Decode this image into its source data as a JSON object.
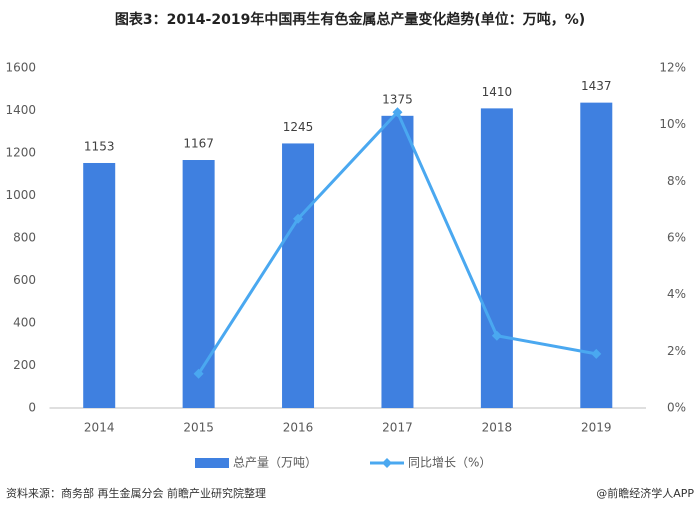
{
  "chart_data": {
    "type": "bar",
    "title": "图表3：2014-2019年中国再生有色金属总产量变化趋势(单位：万吨，%)",
    "categories": [
      "2014",
      "2015",
      "2016",
      "2017",
      "2018",
      "2019"
    ],
    "series": [
      {
        "name": "总产量（万吨）",
        "type": "bar",
        "color": "#3f80e0",
        "values": [
          1153,
          1167,
          1245,
          1375,
          1410,
          1437
        ]
      },
      {
        "name": "同比增长（%）",
        "type": "line",
        "axis": "y2",
        "color": "#4aa8f0",
        "values": [
          null,
          1.21,
          6.68,
          10.44,
          2.55,
          1.91
        ]
      }
    ],
    "ylim": [
      0,
      1600
    ],
    "yticks": [
      0,
      200,
      400,
      600,
      800,
      1000,
      1200,
      1400,
      1600
    ],
    "y2lim": [
      0,
      12
    ],
    "y2ticks": [
      {
        "value": 0,
        "label": "0%"
      },
      {
        "value": 2,
        "label": "2%"
      },
      {
        "value": 4,
        "label": "4%"
      },
      {
        "value": 6,
        "label": "6%"
      },
      {
        "value": 8,
        "label": "8%"
      },
      {
        "value": 10,
        "label": "10%"
      },
      {
        "value": 12,
        "label": "12%"
      }
    ],
    "grid": false,
    "legend": "bottom",
    "source": "资料来源：商务部 再生金属分会 前瞻产业研究院整理",
    "credit": "@前瞻经济学人APP"
  }
}
